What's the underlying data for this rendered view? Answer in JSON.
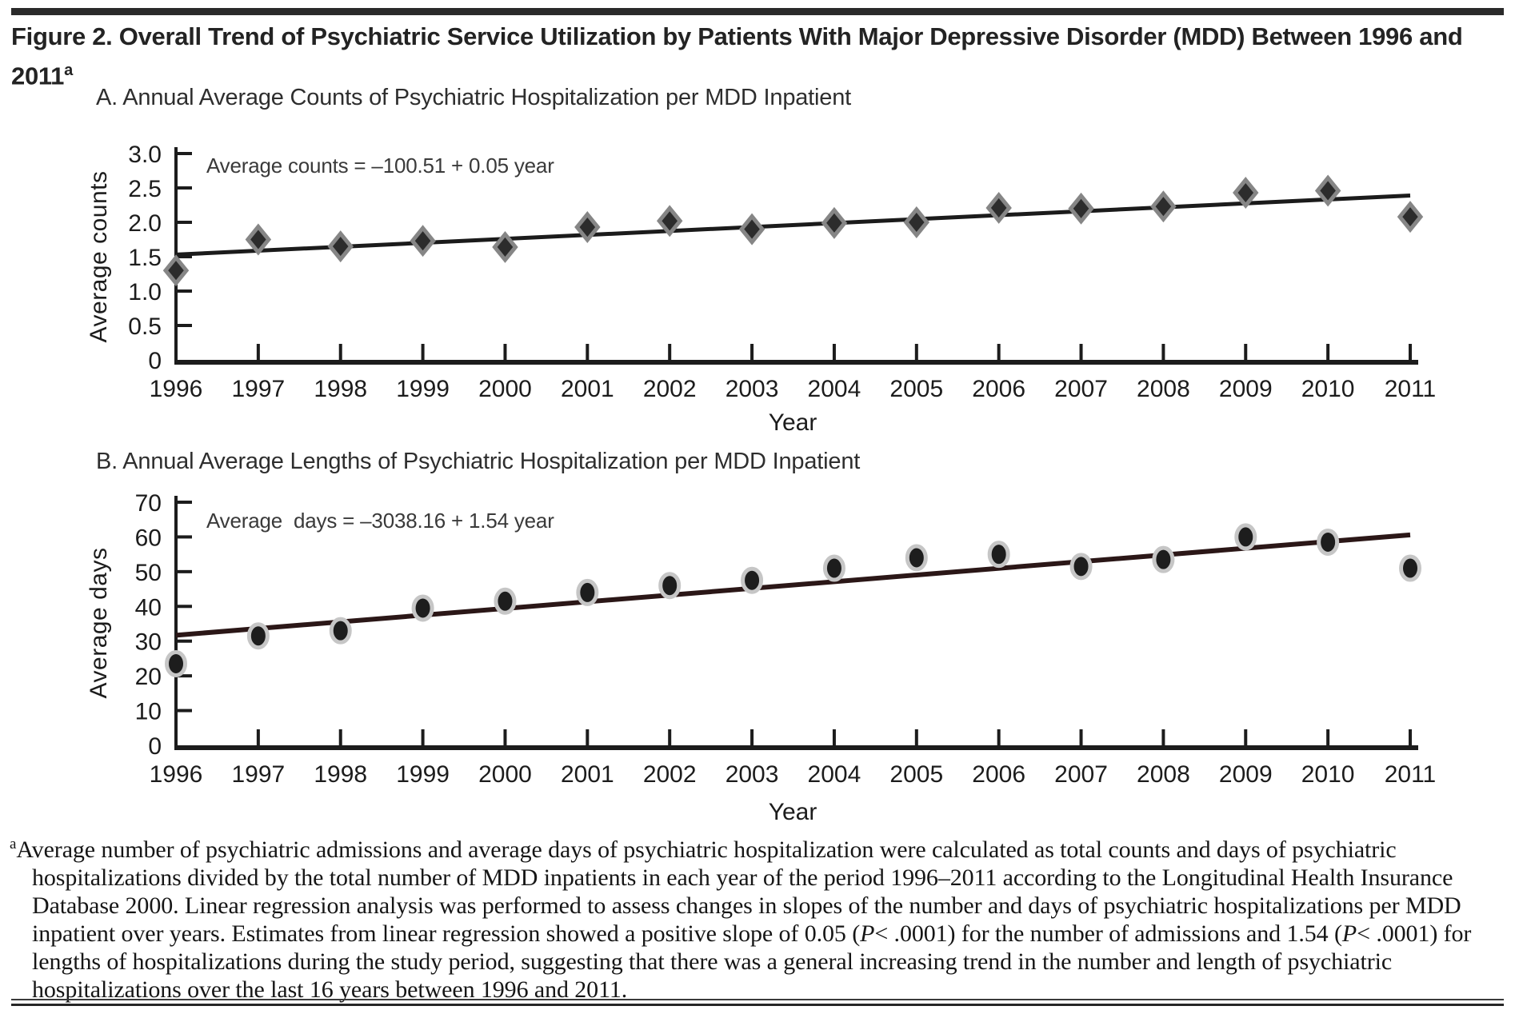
{
  "figure": {
    "title_main": "Figure 2. Overall Trend of Psychiatric Service Utilization by Patients With Major Depressive Disorder (MDD) Between 1996 and 2011",
    "title_superscript": "a"
  },
  "chart_data": [
    {
      "id": "panelA",
      "type": "scatter",
      "panel_label": "A. Annual Average Counts of Psychiatric Hospitalization per MDD Inpatient",
      "equation": "Average counts = –100.51 + 0.05 year",
      "xlabel": "Year",
      "ylabel": "Average counts",
      "x": [
        "1996",
        "1997",
        "1998",
        "1999",
        "2000",
        "2001",
        "2002",
        "2003",
        "2004",
        "2005",
        "2006",
        "2007",
        "2008",
        "2009",
        "2010",
        "2011"
      ],
      "values": [
        1.3,
        1.75,
        1.65,
        1.73,
        1.64,
        1.93,
        2.02,
        1.9,
        1.99,
        2.0,
        2.21,
        2.2,
        2.23,
        2.43,
        2.46,
        2.08
      ],
      "ylim": [
        0,
        3
      ],
      "ytick_values": [
        0,
        0.5,
        1,
        1.5,
        2,
        2.5,
        3
      ],
      "ytick_labels": [
        "0",
        "0.5",
        "1.0",
        "1.5",
        "2.0",
        "2.5",
        "3.0"
      ],
      "trend": {
        "label": "linear regression",
        "y_at_first": 1.53,
        "y_at_last": 2.39,
        "slope": 0.05,
        "intercept": -100.51
      },
      "marker": "diamond",
      "legend": "none",
      "grid": false,
      "colors": {
        "marker_fill": "#2c2c2c",
        "marker_stroke": "#868686",
        "trend": "#1b1b1b",
        "axis": "#1c1c1c"
      }
    },
    {
      "id": "panelB",
      "type": "scatter",
      "panel_label": "B. Annual Average Lengths of Psychiatric Hospitalization per MDD Inpatient",
      "equation": "Average  days = –3038.16 + 1.54 year",
      "xlabel": "Year",
      "ylabel": "Average days",
      "x": [
        "1996",
        "1997",
        "1998",
        "1999",
        "2000",
        "2001",
        "2002",
        "2003",
        "2004",
        "2005",
        "2006",
        "2007",
        "2008",
        "2009",
        "2010",
        "2011"
      ],
      "values": [
        23.5,
        31.5,
        33,
        39.5,
        41.5,
        44,
        46,
        47.5,
        51,
        54,
        55,
        51.5,
        53.5,
        60,
        58.5,
        51
      ],
      "ylim": [
        0,
        70
      ],
      "ytick_values": [
        0,
        10,
        20,
        30,
        40,
        50,
        60,
        70
      ],
      "ytick_labels": [
        "0",
        "10",
        "20",
        "30",
        "40",
        "50",
        "60",
        "70"
      ],
      "trend": {
        "label": "linear regression",
        "y_at_first": 31.7,
        "y_at_last": 60.6,
        "slope": 1.54,
        "intercept": -3038.16
      },
      "marker": "ellipse",
      "legend": "none",
      "grid": false,
      "colors": {
        "marker_fill": "#1d1d1d",
        "marker_stroke": "#c6c6c6",
        "trend": "#2b1717",
        "axis": "#1c1c1c"
      }
    }
  ],
  "footnote": {
    "marker": "a",
    "segments": [
      {
        "t": "Average number of psychiatric admissions and average days of psychiatric hospitalization were calculated as total counts and days of psychiatric hospitalizations divided by the total number of MDD inpatients in each year of the period 1996–2011 according to the Longitudinal Health Insurance Database 2000. Linear regression analysis was performed to assess changes in slopes of the number and days of psychiatric hospitalizations per MDD inpatient over years. Estimates from linear regression showed a positive slope of 0.05 (",
        "i": false
      },
      {
        "t": "P",
        "i": true
      },
      {
        "t": "< .0001) for the number of admissions and 1.54 (",
        "i": false
      },
      {
        "t": "P",
        "i": true
      },
      {
        "t": "< .0001) for lengths of hospitalizations during the study period, suggesting that there was a general increasing trend in the number and length of psychiatric hospitalizations over the last 16 years between 1996 and 2011.",
        "i": false
      }
    ]
  }
}
